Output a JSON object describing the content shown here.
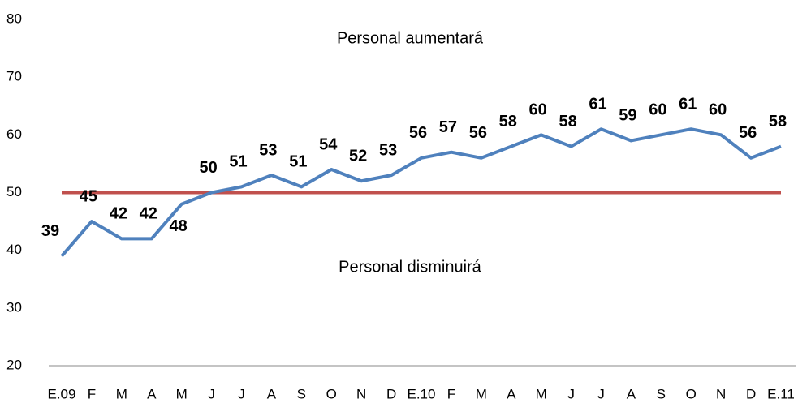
{
  "chart_data": {
    "type": "line",
    "annotations": [
      "Personal aumentará",
      "Personal disminuirá"
    ],
    "categories": [
      "E.09",
      "F",
      "M",
      "A",
      "M",
      "J",
      "J",
      "A",
      "S",
      "O",
      "N",
      "D",
      "E.10",
      "F",
      "M",
      "A",
      "M",
      "J",
      "J",
      "A",
      "S",
      "O",
      "N",
      "D",
      "E.11"
    ],
    "series": [
      {
        "color": "#4f81bd",
        "values": [
          39,
          45,
          42,
          42,
          48,
          50,
          51,
          53,
          51,
          54,
          52,
          53,
          56,
          57,
          56,
          58,
          60,
          58,
          61,
          59,
          60,
          61,
          60,
          56,
          58
        ]
      }
    ],
    "reference_line": {
      "value": 50,
      "color": "#c0504d"
    },
    "ylim": [
      20,
      80
    ],
    "yticks": [
      20,
      30,
      40,
      50,
      60,
      70,
      80
    ],
    "grid": false
  }
}
